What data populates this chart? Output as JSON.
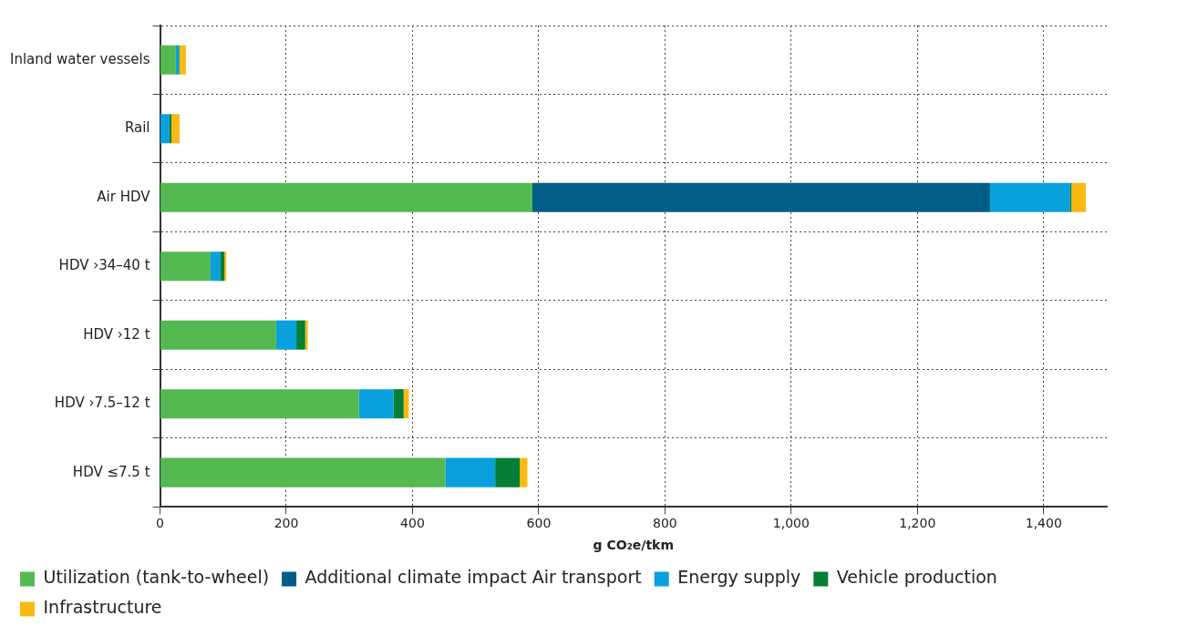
{
  "chart_data": {
    "type": "bar",
    "orientation": "horizontal",
    "stacked": true,
    "xlabel": "g CO₂e/tkm",
    "categories": [
      "Inland water vessels",
      "Rail",
      "Air HDV",
      "HDV ›34–40 t",
      "HDV ›12 t",
      "HDV ›7.5–12 t",
      "HDV ≤7.5 t"
    ],
    "series": [
      {
        "name": "Utilization (tank-to-wheel)",
        "color": "#55b952",
        "values": [
          25,
          0,
          590,
          80,
          184,
          315,
          452
        ]
      },
      {
        "name": "Additional climate impact Air transport",
        "color": "#005d87",
        "values": [
          0,
          0,
          725,
          0,
          0,
          0,
          0
        ]
      },
      {
        "name": "Energy supply",
        "color": "#08a0dd",
        "values": [
          5,
          15,
          127,
          15,
          32,
          55,
          79
        ]
      },
      {
        "name": "Vehicle production",
        "color": "#057f35",
        "values": [
          1,
          3,
          2,
          7,
          14,
          16,
          39
        ]
      },
      {
        "name": "Infrastructure",
        "color": "#fdb913",
        "values": [
          10,
          13,
          23,
          3,
          4,
          8,
          12
        ]
      }
    ],
    "xlim": [
      0,
      1500
    ],
    "xticks": [
      0,
      200,
      400,
      600,
      800,
      {
        "value": 1000,
        "label": "1,000"
      },
      {
        "value": 1200,
        "label": "1,200"
      },
      {
        "value": 1400,
        "label": "1,400"
      }
    ],
    "grid": true,
    "legend": "bottom"
  }
}
